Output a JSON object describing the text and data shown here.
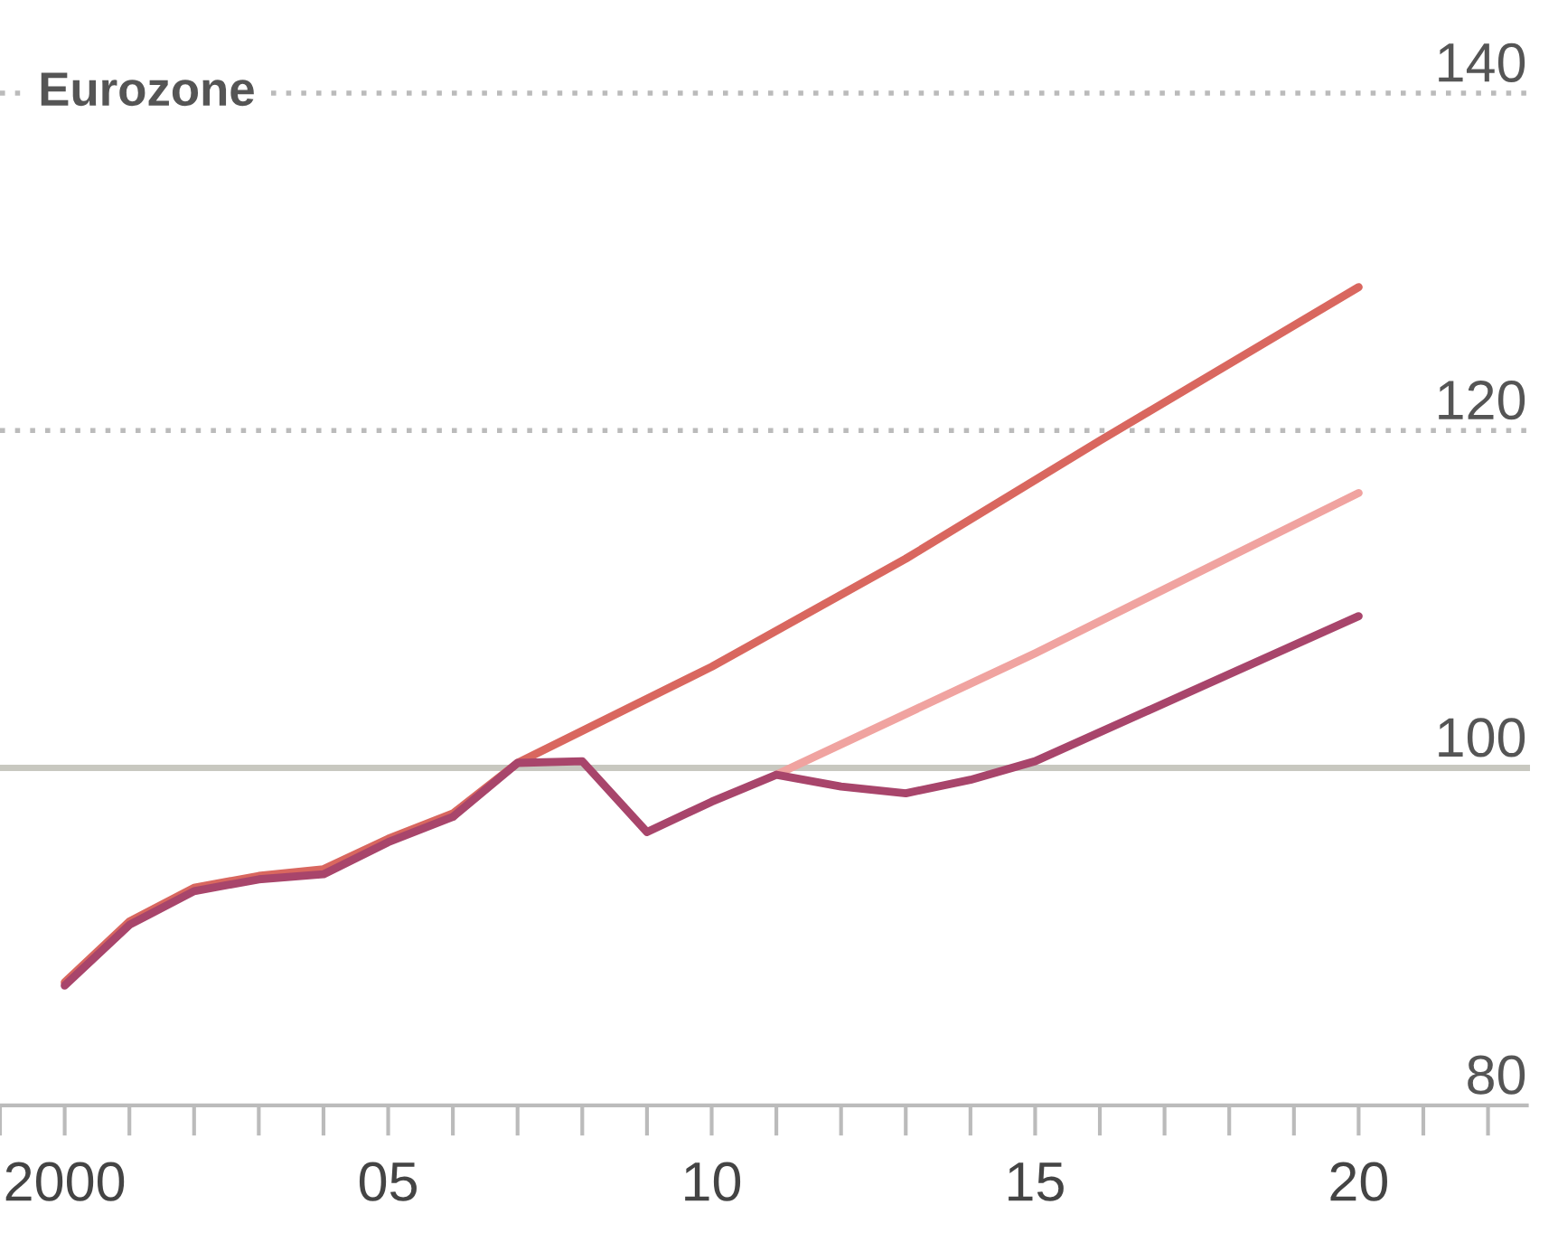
{
  "chart_data": {
    "type": "line",
    "title": "Eurozone",
    "series": [
      {
        "color": "#d9675f",
        "x": [
          2000,
          2001,
          2002,
          2003,
          2004,
          2005,
          2006,
          2007,
          2010,
          2013,
          2016,
          2020
        ],
        "values": [
          87.3,
          90.9,
          92.9,
          93.6,
          94.0,
          95.8,
          97.3,
          100.3,
          106.0,
          112.4,
          119.4,
          128.5
        ]
      },
      {
        "color": "#f0a3a0",
        "x": [
          2011,
          2015,
          2020
        ],
        "values": [
          99.6,
          106.8,
          116.3
        ]
      },
      {
        "color": "#a8456b",
        "x": [
          2000,
          2001,
          2002,
          2003,
          2004,
          2005,
          2006,
          2007,
          2008,
          2009,
          2010,
          2011,
          2012,
          2013,
          2014,
          2015,
          2020
        ],
        "values": [
          87.1,
          90.7,
          92.7,
          93.4,
          93.7,
          95.6,
          97.1,
          100.3,
          100.4,
          96.2,
          98.0,
          99.6,
          98.9,
          98.5,
          99.3,
          100.4,
          109.0
        ]
      }
    ],
    "xlim": [
      1999,
      2022.6
    ],
    "ylim": [
      80,
      140
    ],
    "xticks": [
      {
        "value": 2000,
        "label": "2000"
      },
      {
        "value": 2005,
        "label": "05"
      },
      {
        "value": 2010,
        "label": "10"
      },
      {
        "value": 2015,
        "label": "15"
      },
      {
        "value": 2020,
        "label": "20"
      }
    ],
    "yticks": [
      80,
      100,
      120,
      140
    ],
    "ref_lines": [
      {
        "axis": "y",
        "value": 140,
        "color": "#bbbbbb",
        "line_style": "dotted"
      },
      {
        "axis": "y",
        "value": 120,
        "color": "#bbbbbb",
        "line_style": "dotted"
      },
      {
        "axis": "y",
        "value": 100,
        "color": "#c8c8c0"
      }
    ]
  }
}
